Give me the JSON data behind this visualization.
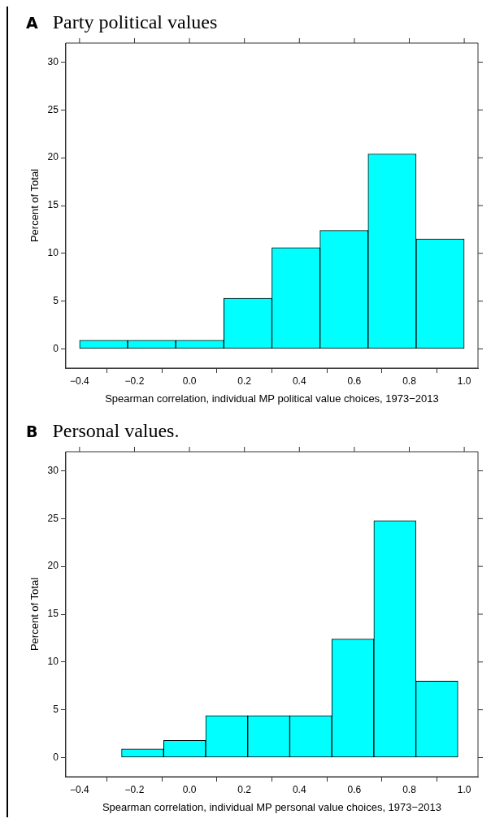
{
  "chart_data": [
    {
      "type": "histogram",
      "title": "Party political values",
      "annotations": [
        "A"
      ],
      "xlabel": "Spearman correlation, individual MP political value choices, 1973−2013",
      "ylabel": "Percent of Total",
      "color": "#00ffff",
      "bins": [
        -0.4,
        -0.225,
        -0.05,
        0.125,
        0.3,
        0.475,
        0.65,
        0.825,
        1.0
      ],
      "values": [
        0.9,
        0.9,
        0.9,
        5.3,
        10.6,
        12.4,
        20.4,
        11.5
      ],
      "xlim": [
        -0.45,
        1.05
      ],
      "ylim": [
        -2,
        32
      ],
      "xticks": [
        {
          "value": -0.4,
          "label": "−0.4"
        },
        {
          "value": -0.2,
          "label": "−0.2"
        },
        {
          "value": 0,
          "label": "0.0"
        },
        0.2,
        0.4,
        0.6,
        0.8,
        {
          "value": 1,
          "label": "1.0"
        }
      ],
      "yticks": [
        0,
        5,
        10,
        15,
        20,
        25,
        30
      ]
    },
    {
      "type": "histogram",
      "title": "Personal values.",
      "annotations": [
        "B"
      ],
      "xlabel": "Spearman correlation, individual MP personal value choices, 1973−2013",
      "ylabel": "Percent of Total",
      "color": "#00ffff",
      "bins": [
        -0.4,
        -0.247,
        -0.094,
        0.059,
        0.212,
        0.365,
        0.518,
        0.671,
        0.824,
        0.977
      ],
      "values": [
        0,
        0.9,
        1.8,
        4.4,
        4.4,
        4.4,
        12.4,
        24.8,
        8.0
      ],
      "xlim": [
        -0.45,
        1.05
      ],
      "ylim": [
        -2,
        32
      ],
      "xticks": [
        {
          "value": -0.4,
          "label": "−0.4"
        },
        {
          "value": -0.2,
          "label": "−0.2"
        },
        {
          "value": 0,
          "label": "0.0"
        },
        0.2,
        0.4,
        0.6,
        0.8,
        {
          "value": 1,
          "label": "1.0"
        }
      ],
      "yticks": [
        0,
        5,
        10,
        15,
        20,
        25,
        30
      ]
    }
  ]
}
